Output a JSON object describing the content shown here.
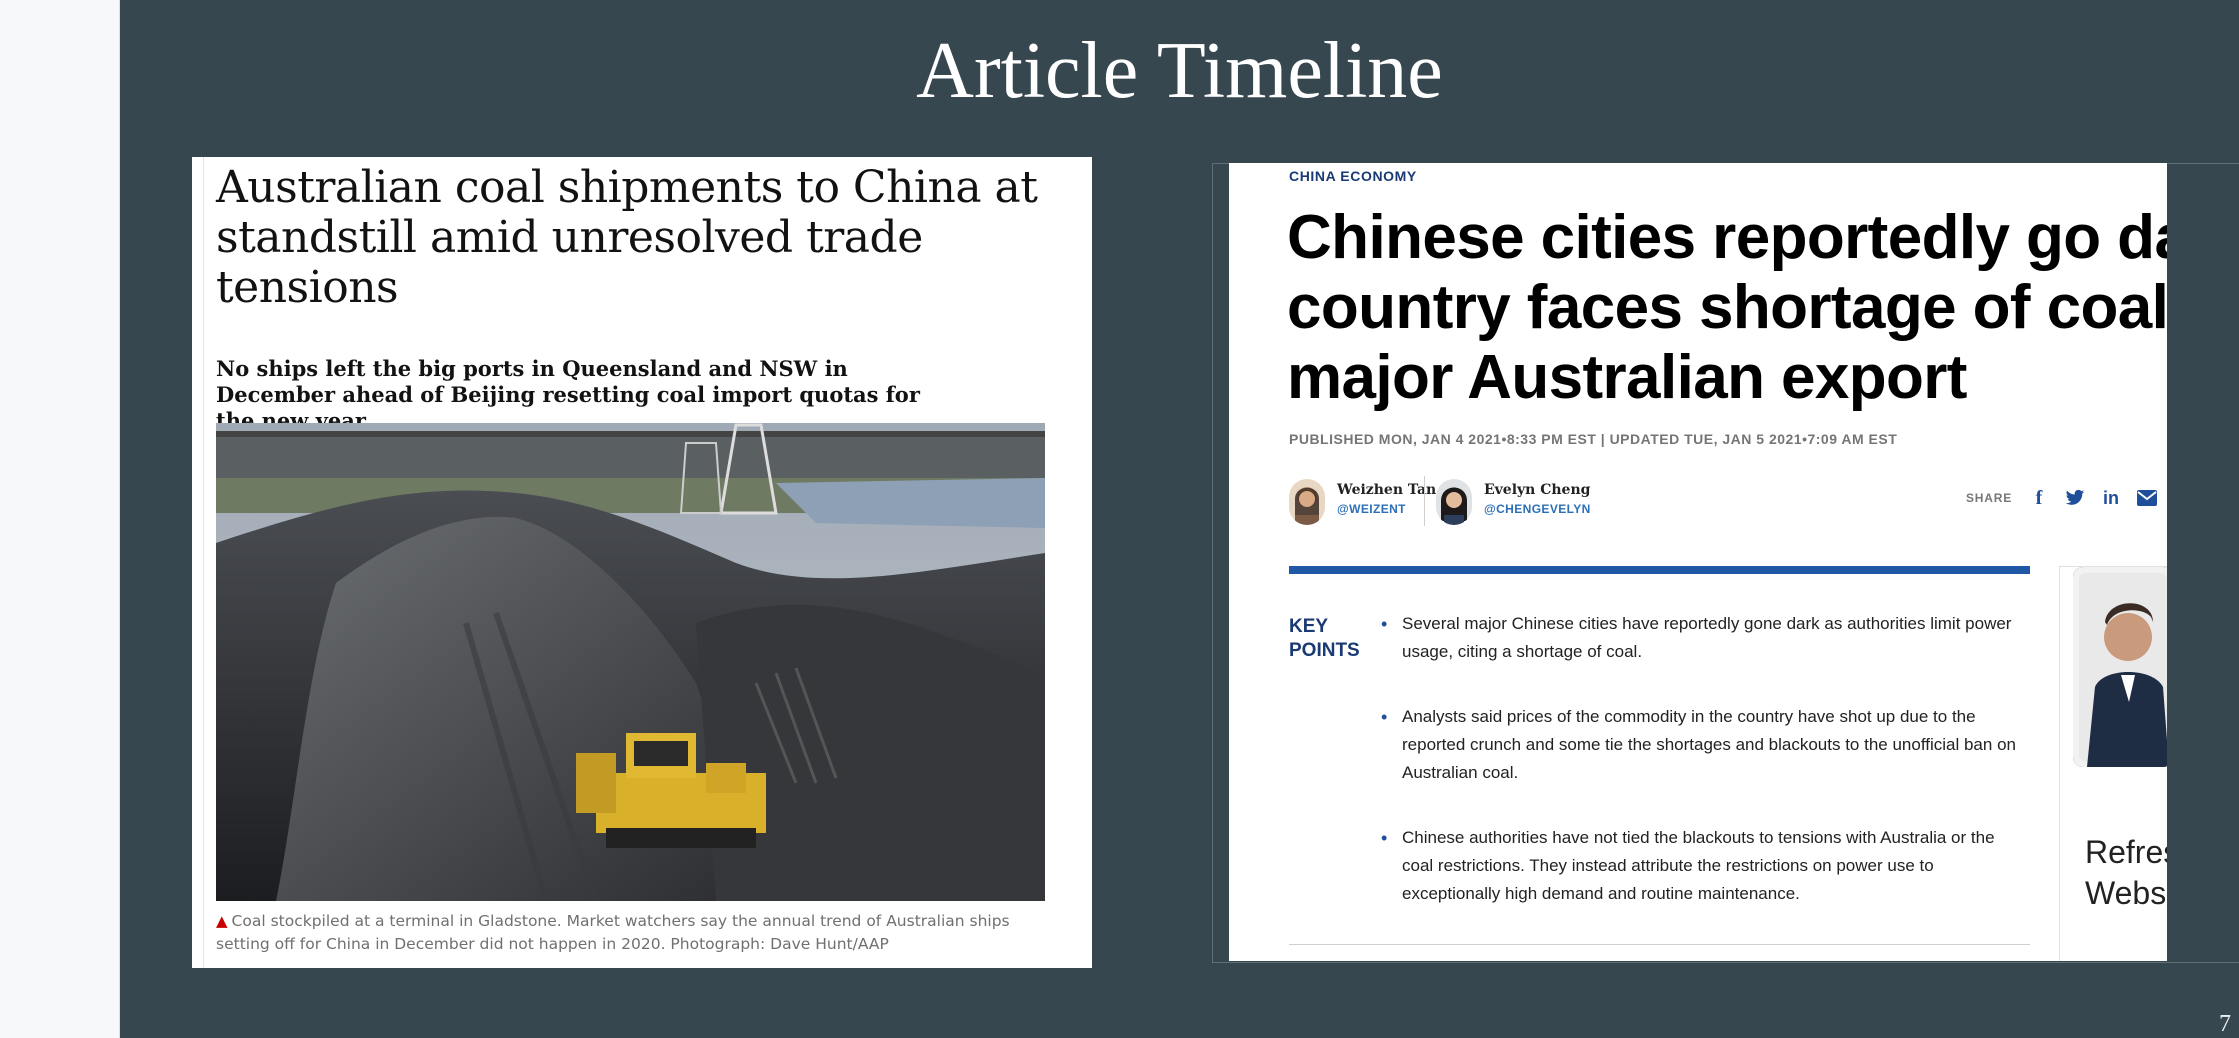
{
  "slide": {
    "title": "Article Timeline",
    "page_number": "7"
  },
  "article_left": {
    "headline": "Australian coal shipments to China at standstill amid unresolved trade tensions",
    "standfirst": "No ships left the big ports in Queensland and NSW in December ahead of Beijing resetting coal import quotas for the new year",
    "caption": "Coal stockpiled at a terminal in Gladstone. Market watchers say the annual trend of Australian ships setting off for China in December did not happen in 2020. Photograph: Dave Hunt/AAP",
    "caption_marker_color": "#c70000",
    "image_subject": "coal stockpile with yellow bulldozer"
  },
  "article_right": {
    "kicker": "CHINA ECONOMY",
    "headline": "Chinese cities reportedly go dark as country faces shortage of coal, a major Australian export",
    "published": "PUBLISHED MON, JAN 4 2021•8:33 PM EST | UPDATED TUE, JAN 5 2021•7:09 AM EST",
    "authors": [
      {
        "name": "Weizhen Tan",
        "handle": "@WEIZENT"
      },
      {
        "name": "Evelyn Cheng",
        "handle": "@CHENGEVELYN"
      }
    ],
    "share_label": "SHARE",
    "share_icons": [
      "facebook-icon",
      "twitter-icon",
      "linkedin-icon",
      "email-icon"
    ],
    "key_points_label": "KEY POINTS",
    "key_points": [
      "Several major Chinese cities have reportedly gone dark as authorities limit power usage, citing a shortage of coal.",
      "Analysts said prices of the commodity in the country have shot up due to the reported crunch and some tie the shortages and blackouts to the unofficial ban on Australian coal.",
      "Chinese authorities have not tied the blackouts to tensions with Australia or the coal restrictions. They instead attribute the restrictions on power use to exceptionally high demand and routine maintenance."
    ],
    "side_ad_text": "Refres\nWebsi",
    "accent_color": "#1f59a6"
  }
}
